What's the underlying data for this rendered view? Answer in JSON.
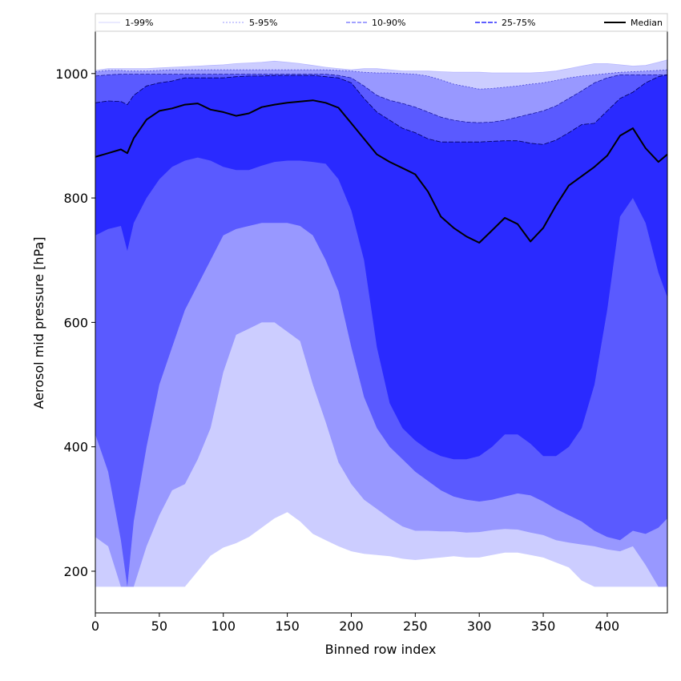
{
  "chart_data": {
    "type": "area",
    "xlabel": "Binned row index",
    "ylabel": "Aerosol mid pressure [hPa]",
    "xlim": [
      0,
      447
    ],
    "ylim": [
      133,
      1068
    ],
    "x_ticks": [
      0,
      50,
      100,
      150,
      200,
      250,
      300,
      350,
      400
    ],
    "y_ticks": [
      200,
      400,
      600,
      800,
      1000
    ],
    "grid": false,
    "legend_position": "top (above plot, single row)",
    "legend": [
      "1-99%",
      "5-95%",
      "10-90%",
      "25-75%",
      "Median"
    ],
    "x": [
      0,
      10,
      20,
      25,
      30,
      40,
      50,
      60,
      70,
      80,
      90,
      100,
      110,
      120,
      130,
      140,
      150,
      160,
      170,
      180,
      190,
      200,
      210,
      220,
      230,
      240,
      250,
      260,
      270,
      280,
      290,
      300,
      310,
      320,
      330,
      340,
      350,
      360,
      370,
      380,
      390,
      400,
      410,
      420,
      430,
      440,
      447
    ],
    "series": [
      {
        "name": "Median",
        "color": "#000000",
        "values": [
          866,
          872,
          878,
          872,
          896,
          926,
          940,
          944,
          950,
          952,
          942,
          938,
          932,
          936,
          946,
          950,
          953,
          955,
          957,
          953,
          945,
          920,
          895,
          870,
          858,
          848,
          838,
          810,
          770,
          752,
          738,
          728,
          748,
          768,
          758,
          730,
          752,
          788,
          820,
          835,
          850,
          868,
          900,
          912,
          880,
          858,
          870
        ]
      }
    ],
    "bands": [
      {
        "name": "1-99%",
        "color": "#cccdff",
        "lower": [
          175,
          175,
          175,
          175,
          175,
          175,
          175,
          175,
          175,
          200,
          225,
          238,
          245,
          255,
          270,
          285,
          295,
          280,
          260,
          250,
          240,
          232,
          228,
          226,
          224,
          220,
          218,
          220,
          222,
          224,
          222,
          222,
          226,
          230,
          230,
          226,
          222,
          214,
          206,
          185,
          175,
          175,
          175,
          175,
          175,
          175,
          175
        ],
        "upper": [
          1005,
          1008,
          1008,
          1008,
          1008,
          1008,
          1009,
          1010,
          1011,
          1012,
          1013,
          1014,
          1016,
          1017,
          1018,
          1020,
          1018,
          1016,
          1013,
          1010,
          1008,
          1006,
          1008,
          1008,
          1006,
          1004,
          1004,
          1004,
          1003,
          1002,
          1002,
          1002,
          1001,
          1001,
          1001,
          1001,
          1002,
          1004,
          1008,
          1012,
          1016,
          1016,
          1014,
          1012,
          1013,
          1018,
          1022
        ]
      },
      {
        "name": "5-95%",
        "color": "#9898ff",
        "lower": [
          255,
          240,
          175,
          175,
          175,
          240,
          290,
          330,
          340,
          380,
          430,
          520,
          580,
          590,
          600,
          600,
          585,
          570,
          500,
          440,
          375,
          340,
          315,
          300,
          285,
          272,
          265,
          265,
          264,
          264,
          262,
          263,
          266,
          268,
          267,
          262,
          258,
          250,
          246,
          243,
          240,
          235,
          232,
          240,
          210,
          175,
          175
        ],
        "upper": [
          1003,
          1005,
          1005,
          1004,
          1004,
          1004,
          1005,
          1006,
          1006,
          1006,
          1006,
          1006,
          1006,
          1006,
          1006,
          1006,
          1006,
          1006,
          1006,
          1006,
          1005,
          1004,
          1002,
          1001,
          1001,
          1000,
          999,
          996,
          990,
          983,
          979,
          975,
          976,
          978,
          980,
          983,
          985,
          989,
          993,
          996,
          998,
          1000,
          1002,
          1003,
          1004,
          1005,
          1006
        ]
      },
      {
        "name": "10-90%",
        "color": "#5a5aff",
        "lower": [
          420,
          360,
          250,
          175,
          280,
          400,
          500,
          560,
          620,
          660,
          700,
          740,
          750,
          755,
          760,
          760,
          760,
          755,
          740,
          700,
          650,
          560,
          480,
          430,
          400,
          380,
          360,
          345,
          330,
          320,
          315,
          312,
          315,
          320,
          325,
          322,
          312,
          300,
          290,
          280,
          265,
          255,
          250,
          265,
          260,
          270,
          285
        ],
        "upper": [
          996,
          998,
          999,
          999,
          999,
          999,
          999,
          999,
          999,
          999,
          999,
          999,
          999,
          999,
          999,
          999,
          999,
          999,
          999,
          999,
          997,
          993,
          980,
          965,
          957,
          952,
          946,
          938,
          930,
          925,
          922,
          921,
          922,
          925,
          930,
          935,
          940,
          948,
          960,
          972,
          985,
          993,
          998,
          998,
          998,
          998,
          998
        ]
      },
      {
        "name": "25-75%",
        "color": "#2a2aff",
        "lower": [
          740,
          750,
          755,
          715,
          760,
          800,
          830,
          850,
          860,
          865,
          860,
          850,
          845,
          845,
          852,
          858,
          860,
          860,
          858,
          855,
          830,
          780,
          700,
          560,
          470,
          430,
          410,
          395,
          385,
          380,
          380,
          385,
          400,
          420,
          420,
          405,
          385,
          385,
          400,
          430,
          500,
          620,
          770,
          800,
          760,
          680,
          640
        ],
        "upper": [
          953,
          956,
          955,
          950,
          965,
          980,
          985,
          988,
          993,
          993,
          993,
          993,
          995,
          996,
          996,
          997,
          997,
          997,
          997,
          995,
          993,
          985,
          960,
          938,
          925,
          912,
          905,
          895,
          890,
          890,
          890,
          890,
          891,
          892,
          892,
          888,
          886,
          893,
          905,
          918,
          920,
          940,
          960,
          970,
          985,
          995,
          998
        ]
      }
    ]
  }
}
